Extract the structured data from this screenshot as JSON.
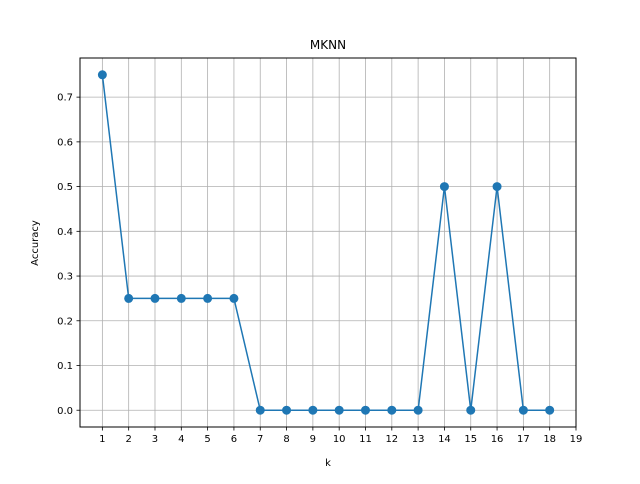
{
  "chart_data": {
    "type": "line",
    "title": "MKNN",
    "xlabel": "k",
    "ylabel": "Accuracy",
    "x": [
      1,
      2,
      3,
      4,
      5,
      6,
      7,
      8,
      9,
      10,
      11,
      12,
      13,
      14,
      15,
      16,
      17,
      18
    ],
    "series": [
      {
        "values": [
          0.75,
          0.25,
          0.25,
          0.25,
          0.25,
          0.25,
          0.0,
          0.0,
          0.0,
          0.0,
          0.0,
          0.0,
          0.0,
          0.5,
          0.0,
          0.5,
          0.0,
          0.0
        ],
        "color": "#1f77b4",
        "marker": "circle"
      }
    ],
    "xticks": [
      1,
      2,
      3,
      4,
      5,
      6,
      7,
      8,
      9,
      10,
      11,
      12,
      13,
      14,
      15,
      16,
      17,
      18,
      19
    ],
    "yticks": [
      "0.0",
      "0.1",
      "0.2",
      "0.3",
      "0.4",
      "0.5",
      "0.6",
      "0.7"
    ],
    "xlim": [
      0.15,
      19.0
    ],
    "ylim": [
      -0.0375,
      0.7875
    ],
    "grid": true,
    "legend": "none"
  }
}
